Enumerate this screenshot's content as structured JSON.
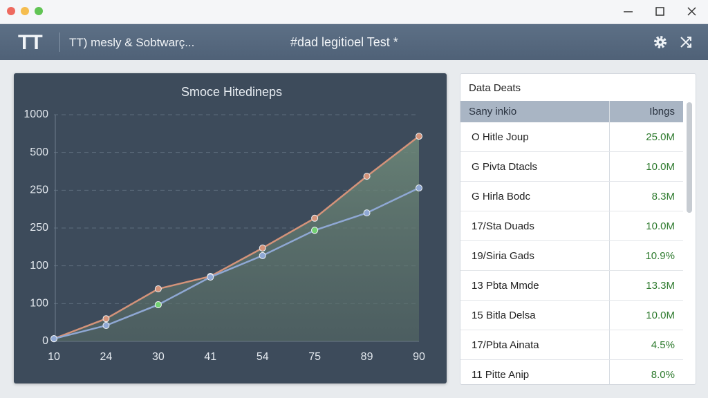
{
  "header": {
    "logo": "TT",
    "app_name": "TT) mesly & Sobtwarç...",
    "document": "#dad legitioel Test *"
  },
  "chart_data": {
    "type": "line",
    "title": "Smoce Hitedineps",
    "categories": [
      "10",
      "24",
      "30",
      "41",
      "54",
      "75",
      "89",
      "90"
    ],
    "yticks": [
      "0",
      "100",
      "100",
      "250",
      "250",
      "500",
      "1000"
    ],
    "ylim": [
      0,
      6
    ],
    "grid": true,
    "series": [
      {
        "color": "#d4937a",
        "values": [
          0.07,
          0.6,
          1.39,
          1.72,
          2.47,
          3.26,
          4.37,
          5.43
        ]
      },
      {
        "color": "#8fa8d4",
        "values": [
          0.07,
          0.42,
          0.97,
          1.7,
          2.27,
          2.94,
          3.4,
          4.06
        ]
      },
      {
        "color": "#72d072",
        "values": [
          null,
          null,
          0.97,
          null,
          null,
          2.94,
          null,
          null
        ]
      }
    ]
  },
  "table": {
    "title": "Data Deats",
    "columns": [
      "Sany inkio",
      "Ibngs"
    ],
    "rows": [
      [
        "O Hitle Joup",
        "25.0M"
      ],
      [
        "G Pivta Dtacls",
        "10.0M"
      ],
      [
        "G Hirla Bodc",
        "8.3M"
      ],
      [
        "17/Sta Duads",
        "10.0M"
      ],
      [
        "19/Siria Gads",
        "10.9%"
      ],
      [
        "13 Pbta Mmde",
        "13.3M"
      ],
      [
        "15 Bitla Delsa",
        "10.0M"
      ],
      [
        "17/Pbta Ainata",
        "4.5%"
      ],
      [
        "11 Pitte Anip",
        "8.0%"
      ]
    ]
  }
}
